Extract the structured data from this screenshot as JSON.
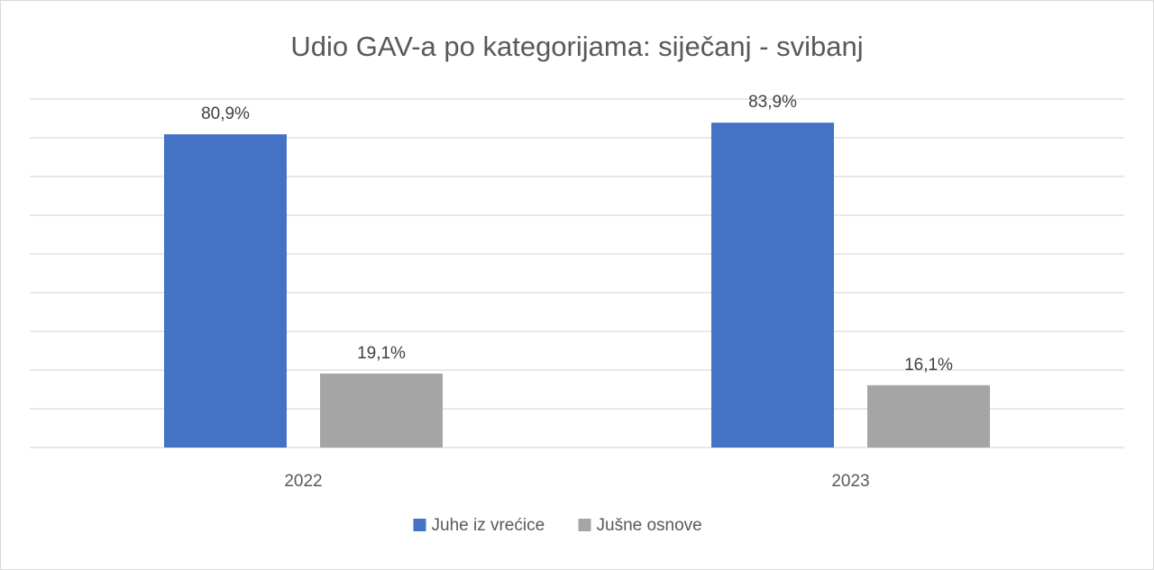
{
  "chart_data": {
    "type": "bar",
    "title": "Udio GAV-a po kategorijama: siječanj - svibanj",
    "categories": [
      "2022",
      "2023"
    ],
    "series": [
      {
        "name": "Juhe iz vrećice",
        "values": [
          80.9,
          83.9
        ],
        "labels": [
          "80,9%",
          "83,9%"
        ],
        "color": "#4472c4"
      },
      {
        "name": "Jušne osnove",
        "values": [
          19.1,
          16.1
        ],
        "labels": [
          "19,1%",
          "16,1%"
        ],
        "color": "#a5a5a5"
      }
    ],
    "ylim": [
      0,
      90
    ],
    "grid": true,
    "legend": "bottom"
  }
}
